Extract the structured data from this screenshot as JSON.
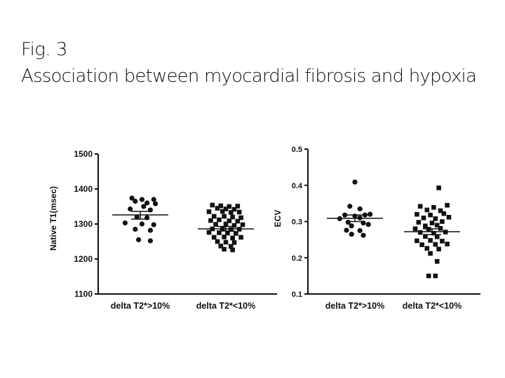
{
  "figure": {
    "label": "Fig. 3",
    "title": "Association between myocardial fibrosis and hypoxia"
  },
  "chart_data": [
    {
      "type": "scatter",
      "ylabel": "Native T1(msec)",
      "xlabel": "",
      "ylim": [
        1100,
        1500
      ],
      "yticks": [
        1100,
        1200,
        1300,
        1400,
        1500
      ],
      "ytick_labels": [
        "1100",
        "1200",
        "1300",
        "1400",
        "1500"
      ],
      "categories": [
        "delta T2*>10%",
        "delta T2*<10%"
      ],
      "series": [
        {
          "marker": "circle",
          "mean": 1326,
          "sem_upper": 1336,
          "sem_lower": 1314,
          "points": [
            [
              -0.5,
              1374
            ],
            [
              0.1,
              1370
            ],
            [
              0.8,
              1370
            ],
            [
              -0.3,
              1365
            ],
            [
              0.4,
              1360
            ],
            [
              0.9,
              1358
            ],
            [
              0.2,
              1350
            ],
            [
              -0.6,
              1343
            ],
            [
              0.6,
              1340
            ],
            [
              -0.2,
              1320
            ],
            [
              0.4,
              1318
            ],
            [
              -0.9,
              1303
            ],
            [
              0.1,
              1300
            ],
            [
              0.8,
              1298
            ],
            [
              -0.3,
              1285
            ],
            [
              0.6,
              1282
            ],
            [
              -0.1,
              1255
            ],
            [
              0.6,
              1252
            ]
          ]
        },
        {
          "marker": "square",
          "mean": 1286,
          "sem_upper": 1293,
          "sem_lower": 1280,
          "points": [
            [
              -0.8,
              1354
            ],
            [
              -0.3,
              1352
            ],
            [
              0.2,
              1350
            ],
            [
              0.7,
              1351
            ],
            [
              -0.5,
              1345
            ],
            [
              0.0,
              1343
            ],
            [
              0.5,
              1342
            ],
            [
              -1.0,
              1335
            ],
            [
              -0.2,
              1336
            ],
            [
              0.3,
              1333
            ],
            [
              0.8,
              1334
            ],
            [
              -0.7,
              1322
            ],
            [
              -0.1,
              1322
            ],
            [
              0.4,
              1320
            ],
            [
              0.9,
              1318
            ],
            [
              -0.9,
              1310
            ],
            [
              -0.4,
              1312
            ],
            [
              0.2,
              1309
            ],
            [
              0.7,
              1308
            ],
            [
              -0.6,
              1299
            ],
            [
              0.0,
              1300
            ],
            [
              0.5,
              1296
            ],
            [
              1.0,
              1298
            ],
            [
              -0.8,
              1286
            ],
            [
              -0.2,
              1287
            ],
            [
              0.3,
              1284
            ],
            [
              0.8,
              1285
            ],
            [
              -1.0,
              1276
            ],
            [
              -0.4,
              1275
            ],
            [
              0.1,
              1274
            ],
            [
              0.6,
              1273
            ],
            [
              -0.7,
              1262
            ],
            [
              -0.1,
              1263
            ],
            [
              0.4,
              1260
            ],
            [
              0.9,
              1262
            ],
            [
              -0.5,
              1250
            ],
            [
              0.0,
              1248
            ],
            [
              0.5,
              1247
            ],
            [
              -0.3,
              1237
            ],
            [
              0.3,
              1236
            ],
            [
              -0.1,
              1228
            ],
            [
              0.4,
              1226
            ]
          ]
        }
      ]
    },
    {
      "type": "scatter",
      "ylabel": "ECV",
      "xlabel": "",
      "ylim": [
        0.1,
        0.5
      ],
      "yticks": [
        0.1,
        0.2,
        0.3,
        0.4,
        0.5
      ],
      "ytick_labels": [
        "0.1",
        "0.2",
        "0.3",
        "0.4",
        "0.5"
      ],
      "categories": [
        "delta T2*>10%",
        "delta T2*<10%"
      ],
      "series": [
        {
          "marker": "circle",
          "mean": 0.309,
          "sem_upper": 0.318,
          "sem_lower": 0.3,
          "points": [
            [
              0.0,
              0.409
            ],
            [
              -0.3,
              0.342
            ],
            [
              0.3,
              0.335
            ],
            [
              -0.6,
              0.318
            ],
            [
              0.0,
              0.315
            ],
            [
              0.6,
              0.318
            ],
            [
              0.9,
              0.32
            ],
            [
              -0.9,
              0.308
            ],
            [
              0.3,
              0.31
            ],
            [
              -0.4,
              0.298
            ],
            [
              0.5,
              0.296
            ],
            [
              -0.2,
              0.288
            ],
            [
              0.8,
              0.292
            ],
            [
              -0.5,
              0.276
            ],
            [
              0.3,
              0.275
            ],
            [
              -0.2,
              0.265
            ],
            [
              0.5,
              0.262
            ]
          ]
        },
        {
          "marker": "square",
          "mean": 0.272,
          "sem_upper": 0.28,
          "sem_lower": 0.264,
          "points": [
            [
              0.4,
              0.393
            ],
            [
              -0.7,
              0.342
            ],
            [
              0.1,
              0.339
            ],
            [
              0.9,
              0.345
            ],
            [
              -0.3,
              0.332
            ],
            [
              0.5,
              0.33
            ],
            [
              -0.9,
              0.32
            ],
            [
              -0.1,
              0.318
            ],
            [
              0.7,
              0.322
            ],
            [
              -0.5,
              0.31
            ],
            [
              0.2,
              0.308
            ],
            [
              1.0,
              0.312
            ],
            [
              -0.8,
              0.298
            ],
            [
              0.0,
              0.296
            ],
            [
              0.6,
              0.3
            ],
            [
              -0.4,
              0.288
            ],
            [
              0.3,
              0.29
            ],
            [
              -1.0,
              0.28
            ],
            [
              -0.2,
              0.279
            ],
            [
              0.5,
              0.281
            ],
            [
              -0.7,
              0.27
            ],
            [
              0.1,
              0.268
            ],
            [
              0.8,
              0.271
            ],
            [
              -0.4,
              0.259
            ],
            [
              0.3,
              0.258
            ],
            [
              -0.9,
              0.247
            ],
            [
              -0.1,
              0.248
            ],
            [
              0.6,
              0.246
            ],
            [
              -0.6,
              0.236
            ],
            [
              0.2,
              0.237
            ],
            [
              0.9,
              0.238
            ],
            [
              -0.3,
              0.226
            ],
            [
              0.4,
              0.224
            ],
            [
              -0.1,
              0.212
            ],
            [
              0.3,
              0.19
            ],
            [
              -0.2,
              0.15
            ],
            [
              0.2,
              0.15
            ]
          ]
        }
      ]
    }
  ]
}
